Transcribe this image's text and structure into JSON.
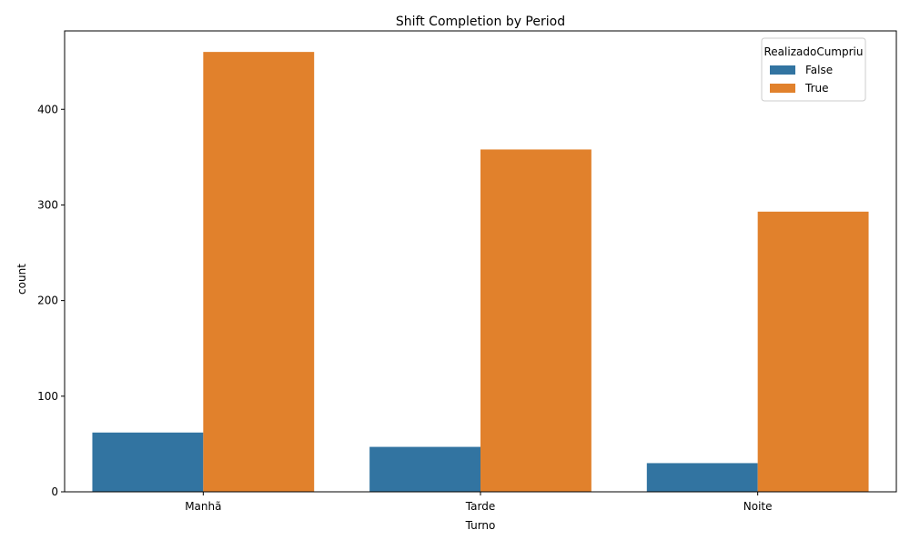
{
  "chart_data": {
    "type": "bar",
    "title": "Shift Completion by Period",
    "xlabel": "Turno",
    "ylabel": "count",
    "categories": [
      "Manhã",
      "Tarde",
      "Noite"
    ],
    "series": [
      {
        "name": "False",
        "values": [
          62,
          47,
          30
        ],
        "color": "#3274a1"
      },
      {
        "name": "True",
        "values": [
          460,
          358,
          293
        ],
        "color": "#e1812c"
      }
    ],
    "ylim": [
      0,
      482
    ],
    "yticks": [
      0,
      100,
      200,
      300,
      400
    ],
    "grid": false,
    "legend": {
      "title": "RealizadoCumpriu",
      "placement": "top-right"
    }
  }
}
